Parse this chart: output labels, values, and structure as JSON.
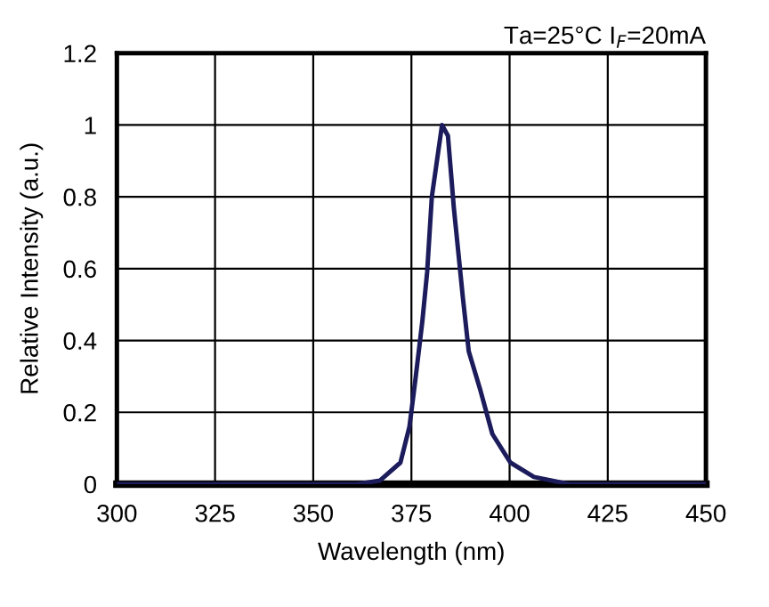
{
  "chart_data": {
    "type": "line",
    "xlabel": "Wavelength (nm)",
    "ylabel": "Relative Intensity (a.u.)",
    "annotations": [
      "Ta=25°C I$_{F}$=20mA"
    ],
    "series": [
      {
        "color": "#1c1c5c",
        "x": [
          300,
          340,
          355,
          361,
          367,
          372.2,
          374.5,
          376,
          377.8,
          379,
          380.2,
          381.3,
          382.8,
          384.3,
          385.8,
          388.1,
          389.6,
          392.6,
          395.6,
          400.2,
          406.2,
          415.2,
          430,
          450
        ],
        "values": [
          0,
          0,
          0,
          0,
          0.01,
          0.06,
          0.16,
          0.29,
          0.455,
          0.59,
          0.8,
          0.885,
          1.0,
          0.97,
          0.77,
          0.52,
          0.37,
          0.26,
          0.14,
          0.06,
          0.02,
          0,
          0,
          0
        ]
      }
    ],
    "xlim": [
      300,
      450
    ],
    "xticks": [
      300,
      325,
      350,
      375,
      400,
      425,
      450
    ],
    "ylim": [
      0,
      1.2
    ],
    "yticks": [
      0,
      0.2,
      0.4,
      0.6,
      0.8,
      1,
      1.2
    ],
    "grid": true,
    "legend": false,
    "marker": "none",
    "line_style": "solid"
  }
}
